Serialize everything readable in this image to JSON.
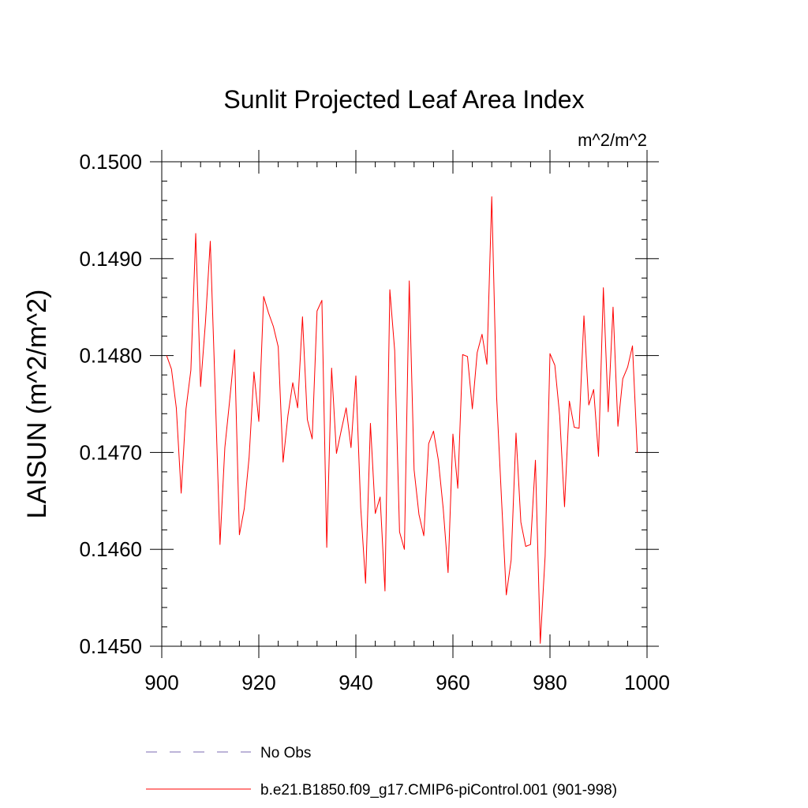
{
  "chart_data": {
    "type": "line",
    "title": "Sunlit Projected Leaf Area Index",
    "units_label": "m^2/m^2",
    "ylabel": "LAISUN  (m^2/m^2)",
    "xlabel": "",
    "xlim": [
      900,
      1000
    ],
    "ylim": [
      0.145,
      0.15
    ],
    "x_ticks": [
      900,
      920,
      940,
      960,
      980,
      1000
    ],
    "x_tick_labels": [
      "900",
      "920",
      "940",
      "960",
      "980",
      "1000"
    ],
    "y_ticks": [
      0.145,
      0.146,
      0.147,
      0.148,
      0.149,
      0.15
    ],
    "y_tick_labels": [
      "0.1450",
      "0.1460",
      "0.1470",
      "0.1480",
      "0.1490",
      "0.1500"
    ],
    "grid": false,
    "series": [
      {
        "name": "b.e21.B1850.f09_g17.CMIP6-piControl.001 (901-998)",
        "color": "#ff0000",
        "style": "solid",
        "x": [
          901,
          902,
          903,
          904,
          905,
          906,
          907,
          908,
          909,
          910,
          911,
          912,
          913,
          914,
          915,
          916,
          917,
          918,
          919,
          920,
          921,
          922,
          923,
          924,
          925,
          926,
          927,
          928,
          929,
          930,
          931,
          932,
          933,
          934,
          935,
          936,
          937,
          938,
          939,
          940,
          941,
          942,
          943,
          944,
          945,
          946,
          947,
          948,
          949,
          950,
          951,
          952,
          953,
          954,
          955,
          956,
          957,
          958,
          959,
          960,
          961,
          962,
          963,
          964,
          965,
          966,
          967,
          968,
          969,
          970,
          971,
          972,
          973,
          974,
          975,
          976,
          977,
          978,
          979,
          980,
          981,
          982,
          983,
          984,
          985,
          986,
          987,
          988,
          989,
          990,
          991,
          992,
          993,
          994,
          995,
          996,
          997,
          998
        ],
        "values": [
          0.148,
          0.14786,
          0.14746,
          0.14658,
          0.14745,
          0.14785,
          0.14926,
          0.14768,
          0.14834,
          0.14918,
          0.14765,
          0.14605,
          0.14705,
          0.14754,
          0.14806,
          0.14615,
          0.14642,
          0.14695,
          0.14783,
          0.14732,
          0.14861,
          0.14844,
          0.1483,
          0.14809,
          0.1469,
          0.14738,
          0.14772,
          0.14746,
          0.1484,
          0.14734,
          0.14714,
          0.14846,
          0.14857,
          0.14602,
          0.14787,
          0.14699,
          0.14723,
          0.14746,
          0.14705,
          0.14779,
          0.14643,
          0.14565,
          0.1473,
          0.14637,
          0.14654,
          0.14557,
          0.14868,
          0.14805,
          0.14618,
          0.146,
          0.14877,
          0.14682,
          0.14636,
          0.14614,
          0.14709,
          0.14722,
          0.14692,
          0.14642,
          0.14576,
          0.14719,
          0.14663,
          0.14801,
          0.14799,
          0.14745,
          0.14803,
          0.14822,
          0.14791,
          0.14964,
          0.14758,
          0.14653,
          0.14553,
          0.14589,
          0.1472,
          0.14628,
          0.14603,
          0.14605,
          0.14692,
          0.14503,
          0.14593,
          0.14802,
          0.1479,
          0.14738,
          0.14644,
          0.14753,
          0.14726,
          0.14725,
          0.14841,
          0.14749,
          0.14765,
          0.14696,
          0.1487,
          0.14742,
          0.1485,
          0.14727,
          0.14776,
          0.14788,
          0.1481,
          0.147
        ]
      }
    ],
    "legend": [
      {
        "label": "No Obs",
        "color": "#7b68b0",
        "style": "dashed"
      },
      {
        "label": "b.e21.B1850.f09_g17.CMIP6-piControl.001 (901-998)",
        "color": "#ff0000",
        "style": "solid"
      }
    ],
    "legend_position": "bottom"
  }
}
